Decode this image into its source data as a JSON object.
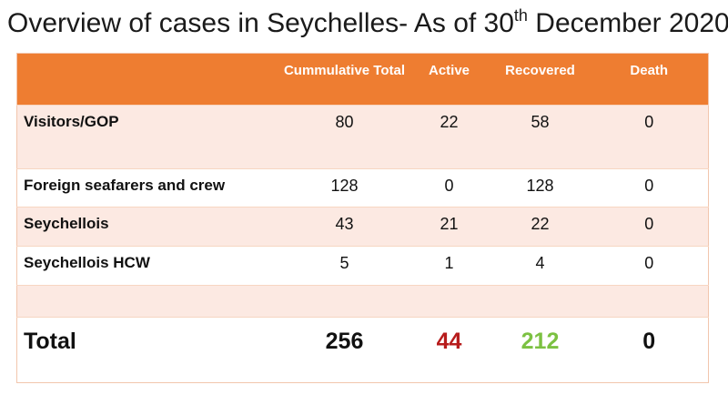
{
  "title": {
    "prefix": "Overview  of cases in Seychelles- As of 30",
    "superscript": "th",
    "suffix": " December 2020"
  },
  "table": {
    "headers": {
      "label": "",
      "cumulative": "Cummulative Total",
      "active": "Active",
      "recovered": "Recovered",
      "death": "Death"
    },
    "rows": [
      {
        "label": "Visitors/GOP",
        "cumulative": "80",
        "active": "22",
        "recovered": "58",
        "death": "0"
      },
      {
        "label": "Foreign seafarers and crew",
        "cumulative": "128",
        "active": "0",
        "recovered": "128",
        "death": "0"
      },
      {
        "label": "Seychellois",
        "cumulative": "43",
        "active": "21",
        "recovered": "22",
        "death": "0"
      },
      {
        "label": "Seychellois HCW",
        "cumulative": "5",
        "active": "1",
        "recovered": "4",
        "death": "0"
      }
    ],
    "total": {
      "label": "Total",
      "cumulative": "256",
      "active": "44",
      "recovered": "212",
      "death": "0"
    }
  },
  "colors": {
    "header": "#ee7d31",
    "row_pink": "#fce9e2",
    "active_total": "#b71c1c",
    "recovered_total": "#7cc142"
  }
}
